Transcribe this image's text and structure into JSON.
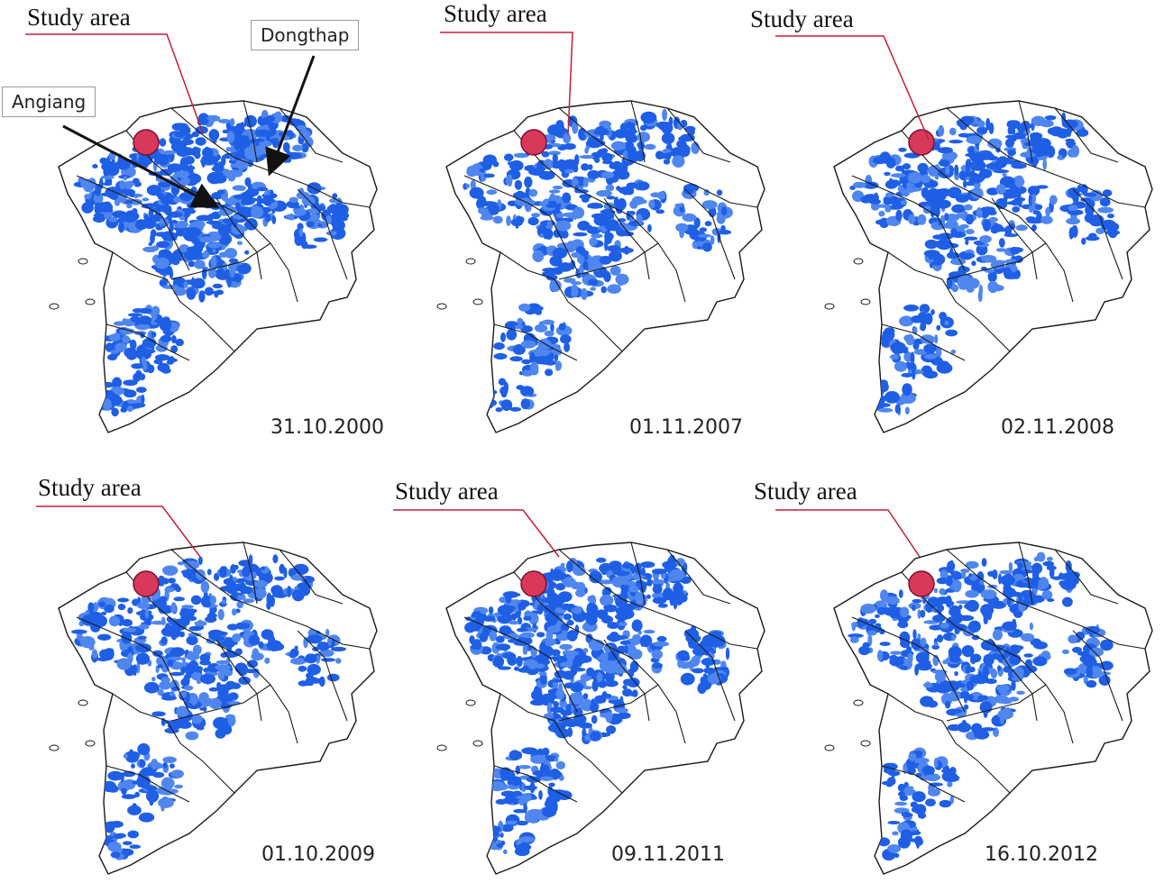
{
  "labels": {
    "study_area": "Study area",
    "province_angiang": "Angiang",
    "province_dongthap": "Dongthap"
  },
  "colors": {
    "flood": "#1f5fe6",
    "flood_light": "#4f86ef",
    "boundary": "#1a1a1a",
    "study_area_fill": "#d8385a",
    "leader_line": "#c41e3a"
  },
  "panels": [
    {
      "date": "31.10.2000",
      "flood_extent": "high"
    },
    {
      "date": "01.11.2007",
      "flood_extent": "medium"
    },
    {
      "date": "02.11.2008",
      "flood_extent": "medium"
    },
    {
      "date": "01.10.2009",
      "flood_extent": "medium"
    },
    {
      "date": "09.11.2011",
      "flood_extent": "high"
    },
    {
      "date": "16.10.2012",
      "flood_extent": "medium"
    }
  ]
}
